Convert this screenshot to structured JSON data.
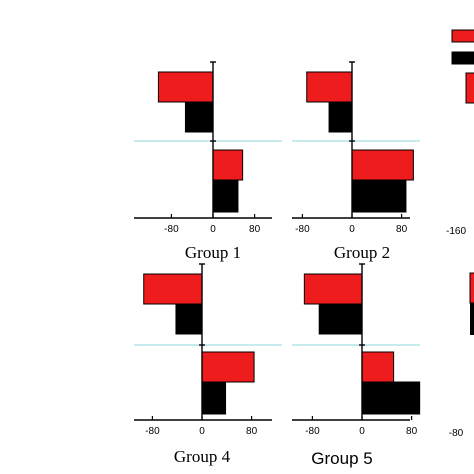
{
  "chart_data": [
    {
      "type": "bar",
      "orientation": "horizontal",
      "title": "Group 1",
      "xlim": [
        -100,
        100
      ],
      "xticks": [
        -80,
        0,
        80
      ],
      "xtick_labels": [
        "-80",
        "0",
        "80"
      ],
      "rows": [
        {
          "series": "red",
          "value": -105
        },
        {
          "series": "black",
          "value": -53
        },
        {
          "series": "red",
          "value": 57
        },
        {
          "series": "black",
          "value": 48
        }
      ]
    },
    {
      "type": "bar",
      "orientation": "horizontal",
      "title": "Group 2",
      "xlim": [
        -100,
        100
      ],
      "xticks": [
        -80,
        0,
        80
      ],
      "xtick_labels": [
        "-80",
        "0",
        "80"
      ],
      "rows": [
        {
          "series": "red",
          "value": -73
        },
        {
          "series": "black",
          "value": -37
        },
        {
          "series": "red",
          "value": 99
        },
        {
          "series": "black",
          "value": 87
        }
      ]
    },
    {
      "type": "bar",
      "orientation": "horizontal",
      "title": "Group 4",
      "xlim": [
        -100,
        100
      ],
      "xticks": [
        -80,
        0,
        80
      ],
      "xtick_labels": [
        "-80",
        "0",
        "80"
      ],
      "rows": [
        {
          "series": "red",
          "value": -94
        },
        {
          "series": "black",
          "value": -42
        },
        {
          "series": "red",
          "value": 84
        },
        {
          "series": "black",
          "value": 38
        }
      ]
    },
    {
      "type": "bar",
      "orientation": "horizontal",
      "title": "Group 5",
      "xlim": [
        -100,
        100
      ],
      "xticks": [
        -80,
        0,
        80
      ],
      "xtick_labels": [
        "-80",
        "0",
        "80"
      ],
      "rows": [
        {
          "series": "red",
          "value": -93
        },
        {
          "series": "black",
          "value": -69
        },
        {
          "series": "red",
          "value": 51
        },
        {
          "series": "black",
          "value": 93
        }
      ]
    }
  ],
  "partial_axis_labels": [
    "-160",
    "-80"
  ],
  "colors": {
    "red": "#ee1c1c",
    "black": "#000000",
    "separator": "#8fd8dc",
    "axis": "#000000"
  }
}
